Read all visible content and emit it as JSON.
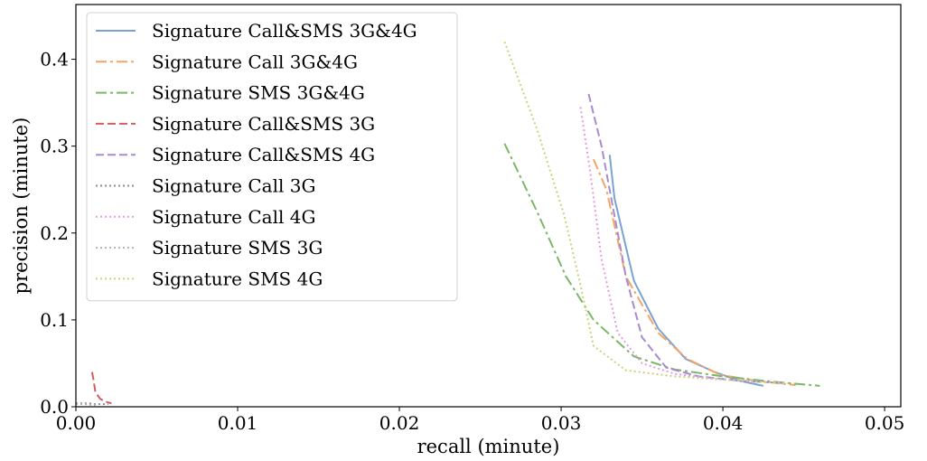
{
  "chart_data": {
    "type": "line",
    "xlabel": "recall (minute)",
    "ylabel": "precision (minute)",
    "xlim": [
      0,
      0.051
    ],
    "ylim": [
      0,
      0.463
    ],
    "xticks": [
      0.0,
      0.01,
      0.02,
      0.03,
      0.04,
      0.05
    ],
    "xtick_labels": [
      "0.00",
      "0.01",
      "0.02",
      "0.03",
      "0.04",
      "0.05"
    ],
    "yticks": [
      0.0,
      0.1,
      0.2,
      0.3,
      0.4
    ],
    "ytick_labels": [
      "0.0",
      "0.1",
      "0.2",
      "0.3",
      "0.4"
    ],
    "grid": false,
    "legend_position": "top-left",
    "series": [
      {
        "name": "Signature Call&SMS 3G&4G",
        "color": "#7ba3d0",
        "style": "solid",
        "x": [
          0.033,
          0.0333,
          0.0345,
          0.036,
          0.0377,
          0.0395,
          0.041,
          0.0425
        ],
        "y": [
          0.29,
          0.24,
          0.145,
          0.09,
          0.055,
          0.04,
          0.03,
          0.024
        ]
      },
      {
        "name": "Signature Call 3G&4G",
        "color": "#f5a461",
        "style": "dashdot",
        "x": [
          0.032,
          0.0328,
          0.034,
          0.036,
          0.0378,
          0.0398,
          0.042,
          0.0445
        ],
        "y": [
          0.285,
          0.25,
          0.15,
          0.085,
          0.055,
          0.037,
          0.03,
          0.025
        ]
      },
      {
        "name": "Signature SMS 3G&4G",
        "color": "#78b866",
        "style": "dashdot",
        "x": [
          0.0265,
          0.0285,
          0.0303,
          0.032,
          0.0345,
          0.037,
          0.04,
          0.043,
          0.046
        ],
        "y": [
          0.303,
          0.225,
          0.15,
          0.1,
          0.058,
          0.043,
          0.035,
          0.029,
          0.024
        ]
      },
      {
        "name": "Signature Call&SMS 3G",
        "color": "#d06060",
        "style": "dashed",
        "x": [
          0.001,
          0.0011,
          0.0012,
          0.0015,
          0.0018,
          0.0022
        ],
        "y": [
          0.04,
          0.03,
          0.017,
          0.009,
          0.006,
          0.004
        ]
      },
      {
        "name": "Signature Call&SMS 4G",
        "color": "#a88ad0",
        "style": "dashed",
        "x": [
          0.0317,
          0.0325,
          0.0332,
          0.034,
          0.035,
          0.0365,
          0.0385,
          0.041,
          0.044
        ],
        "y": [
          0.36,
          0.3,
          0.23,
          0.15,
          0.08,
          0.045,
          0.035,
          0.03,
          0.027
        ]
      },
      {
        "name": "Signature Call 3G",
        "color": "#8c8c8c",
        "style": "dotted",
        "x": [
          0.0,
          0.0008,
          0.0012,
          0.0016,
          0.002
        ],
        "y": [
          0.004,
          0.004,
          0.003,
          0.003,
          0.003
        ]
      },
      {
        "name": "Signature Call 4G",
        "color": "#e69be0",
        "style": "dotted",
        "x": [
          0.0312,
          0.0318,
          0.0325,
          0.0335,
          0.035,
          0.037,
          0.0395,
          0.042
        ],
        "y": [
          0.345,
          0.27,
          0.17,
          0.085,
          0.05,
          0.038,
          0.032,
          0.03
        ]
      },
      {
        "name": "Signature SMS 3G",
        "color": "#b3b3b3",
        "style": "dotted",
        "x": [
          0.0,
          0.0005,
          0.001,
          0.0014
        ],
        "y": [
          0.003,
          0.003,
          0.002,
          0.002
        ]
      },
      {
        "name": "Signature SMS 4G",
        "color": "#cdd27a",
        "style": "dotted",
        "x": [
          0.0265,
          0.0285,
          0.0302,
          0.0312,
          0.032,
          0.034,
          0.037,
          0.041,
          0.044
        ],
        "y": [
          0.42,
          0.32,
          0.22,
          0.14,
          0.07,
          0.042,
          0.035,
          0.03,
          0.027
        ]
      }
    ]
  }
}
